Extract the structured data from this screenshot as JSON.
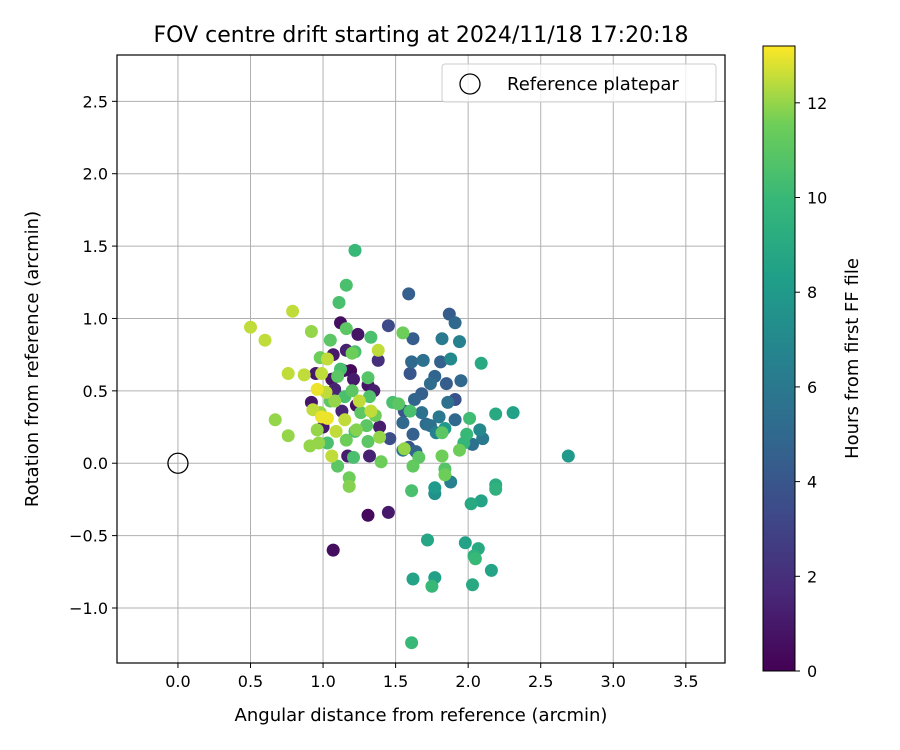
{
  "chart_data": {
    "type": "scatter",
    "title": "FOV centre drift starting at 2024/11/18 17:20:18",
    "xlabel": "Angular distance from reference (arcmin)",
    "ylabel": "Rotation from reference (arcmin)",
    "xlim": [
      -0.42,
      3.77
    ],
    "ylim": [
      -1.38,
      2.82
    ],
    "xticks": [
      0.0,
      0.5,
      1.0,
      1.5,
      2.0,
      2.5,
      3.0,
      3.5
    ],
    "yticks": [
      -1.0,
      -0.5,
      0.0,
      0.5,
      1.0,
      1.5,
      2.0,
      2.5
    ],
    "xtick_labels": [
      "0.0",
      "0.5",
      "1.0",
      "1.5",
      "2.0",
      "2.5",
      "3.0",
      "3.5"
    ],
    "ytick_labels": [
      "−1.0",
      "−0.5",
      "0.0",
      "0.5",
      "1.0",
      "1.5",
      "2.0",
      "2.5"
    ],
    "grid": true,
    "legend": {
      "placement": "top-right",
      "entries": [
        "Reference platepar"
      ]
    },
    "reference_point": {
      "x": 0.0,
      "y": 0.0
    },
    "colorbar": {
      "label": "Hours from first FF file",
      "colormap": "viridis",
      "range": [
        0,
        13.2
      ],
      "ticks": [
        0,
        2,
        4,
        6,
        8,
        10,
        12
      ],
      "tick_labels": [
        "0",
        "2",
        "4",
        "6",
        "8",
        "10",
        "12"
      ]
    },
    "points": [
      [
        1.07,
        -0.6,
        0.5
      ],
      [
        1.31,
        -0.36,
        0.4
      ],
      [
        1.45,
        -0.34,
        1.0
      ],
      [
        1.12,
        0.97,
        0.6
      ],
      [
        1.24,
        0.89,
        0.8
      ],
      [
        1.07,
        0.75,
        1.0
      ],
      [
        1.16,
        0.78,
        1.3
      ],
      [
        1.14,
        0.64,
        0.5
      ],
      [
        1.19,
        0.64,
        0.3
      ],
      [
        1.06,
        0.58,
        0.7
      ],
      [
        0.95,
        0.62,
        0.9
      ],
      [
        1.21,
        0.58,
        1.1
      ],
      [
        1.31,
        0.54,
        0.8
      ],
      [
        1.08,
        0.51,
        1.5
      ],
      [
        1.35,
        0.5,
        1.2
      ],
      [
        1.23,
        0.4,
        0.6
      ],
      [
        0.92,
        0.42,
        0.9
      ],
      [
        1.13,
        0.36,
        1.5
      ],
      [
        1.0,
        0.25,
        1.0
      ],
      [
        1.39,
        0.25,
        1.2
      ],
      [
        1.17,
        0.05,
        1.2
      ],
      [
        1.32,
        0.05,
        1.4
      ],
      [
        1.46,
        0.17,
        3.5
      ],
      [
        1.38,
        0.71,
        2.0
      ],
      [
        1.45,
        0.95,
        3.4
      ],
      [
        1.59,
        1.17,
        4.5
      ],
      [
        1.87,
        1.03,
        4.3
      ],
      [
        1.91,
        0.97,
        5.0
      ],
      [
        1.62,
        0.86,
        4.4
      ],
      [
        1.82,
        0.86,
        6.0
      ],
      [
        1.94,
        0.84,
        6.5
      ],
      [
        1.61,
        0.7,
        5.0
      ],
      [
        1.69,
        0.71,
        5.5
      ],
      [
        1.81,
        0.7,
        4.6
      ],
      [
        1.88,
        0.72,
        7.0
      ],
      [
        1.6,
        0.62,
        4.0
      ],
      [
        1.77,
        0.6,
        4.8
      ],
      [
        1.74,
        0.55,
        5.2
      ],
      [
        1.85,
        0.55,
        4.4
      ],
      [
        1.95,
        0.57,
        5.0
      ],
      [
        1.68,
        0.48,
        4.5
      ],
      [
        1.63,
        0.44,
        4.8
      ],
      [
        1.86,
        0.42,
        5.5
      ],
      [
        1.91,
        0.44,
        3.8
      ],
      [
        1.56,
        0.36,
        4.0
      ],
      [
        1.68,
        0.35,
        5.5
      ],
      [
        1.8,
        0.32,
        6.0
      ],
      [
        1.91,
        0.3,
        5.0
      ],
      [
        1.71,
        0.27,
        5.2
      ],
      [
        1.74,
        0.26,
        5.5
      ],
      [
        1.62,
        0.2,
        4.6
      ],
      [
        1.78,
        0.21,
        6.5
      ],
      [
        1.84,
        0.24,
        8.0
      ],
      [
        1.55,
        0.28,
        5.0
      ],
      [
        1.59,
        0.11,
        4.0
      ],
      [
        1.64,
        0.08,
        4.8
      ],
      [
        2.03,
        0.13,
        5.5
      ],
      [
        2.1,
        0.17,
        6.0
      ],
      [
        2.08,
        0.23,
        7.0
      ],
      [
        1.55,
        0.09,
        5.8
      ],
      [
        2.09,
        0.69,
        9.0
      ],
      [
        2.31,
        0.35,
        8.5
      ],
      [
        2.19,
        0.34,
        9.0
      ],
      [
        2.69,
        0.05,
        8.0
      ],
      [
        1.88,
        -0.13,
        6.5
      ],
      [
        1.77,
        -0.17,
        8.0
      ],
      [
        1.77,
        -0.21,
        7.5
      ],
      [
        1.98,
        -0.55,
        8.5
      ],
      [
        2.09,
        -0.26,
        8.6
      ],
      [
        2.02,
        -0.28,
        9.0
      ],
      [
        2.19,
        -0.15,
        9.2
      ],
      [
        2.19,
        -0.18,
        9.5
      ],
      [
        2.07,
        -0.59,
        9.0
      ],
      [
        2.04,
        -0.64,
        9.5
      ],
      [
        2.05,
        -0.66,
        10.0
      ],
      [
        2.16,
        -0.74,
        8.6
      ],
      [
        1.72,
        -0.53,
        8.8
      ],
      [
        1.77,
        -0.79,
        8.4
      ],
      [
        1.62,
        -0.8,
        8.6
      ],
      [
        2.03,
        -0.84,
        9.0
      ],
      [
        1.75,
        -0.85,
        10.0
      ],
      [
        1.61,
        -1.24,
        10.0
      ],
      [
        1.22,
        1.47,
        10.0
      ],
      [
        1.16,
        1.23,
        10.5
      ],
      [
        1.11,
        1.11,
        10.5
      ],
      [
        1.16,
        0.93,
        11.0
      ],
      [
        1.33,
        0.87,
        10.5
      ],
      [
        1.55,
        0.9,
        11.5
      ],
      [
        1.05,
        0.85,
        11.0
      ],
      [
        1.22,
        0.77,
        10.5
      ],
      [
        1.2,
        0.76,
        11.5
      ],
      [
        0.98,
        0.73,
        11.5
      ],
      [
        1.12,
        0.65,
        10.5
      ],
      [
        1.1,
        0.6,
        11.0
      ],
      [
        1.31,
        0.59,
        10.8
      ],
      [
        1.2,
        0.5,
        11.0
      ],
      [
        1.15,
        0.46,
        10.5
      ],
      [
        1.32,
        0.46,
        10.7
      ],
      [
        1.05,
        0.43,
        11.0
      ],
      [
        1.48,
        0.42,
        10.5
      ],
      [
        1.6,
        0.36,
        10.5
      ],
      [
        1.26,
        0.35,
        11.0
      ],
      [
        1.36,
        0.33,
        11.5
      ],
      [
        1.3,
        0.26,
        11.0
      ],
      [
        1.22,
        0.22,
        10.5
      ],
      [
        1.31,
        0.15,
        11.0
      ],
      [
        1.16,
        0.16,
        11.5
      ],
      [
        1.03,
        0.14,
        10.5
      ],
      [
        1.56,
        0.1,
        12.0
      ],
      [
        1.66,
        0.04,
        11.0
      ],
      [
        1.82,
        0.05,
        11.5
      ],
      [
        1.62,
        -0.02,
        11.2
      ],
      [
        1.4,
        0.01,
        11.5
      ],
      [
        1.21,
        0.04,
        10.5
      ],
      [
        1.1,
        -0.02,
        11.0
      ],
      [
        1.18,
        -0.1,
        11.5
      ],
      [
        1.18,
        -0.16,
        11.8
      ],
      [
        1.61,
        -0.19,
        10.5
      ],
      [
        1.84,
        -0.04,
        10.8
      ],
      [
        1.82,
        0.21,
        11.0
      ],
      [
        1.97,
        0.14,
        9.8
      ],
      [
        1.99,
        0.2,
        10.0
      ],
      [
        2.01,
        0.31,
        10.2
      ],
      [
        1.94,
        0.09,
        11.5
      ],
      [
        1.84,
        -0.08,
        11.5
      ],
      [
        1.52,
        0.41,
        11.0
      ],
      [
        0.5,
        0.94,
        12.5
      ],
      [
        0.6,
        0.85,
        12.5
      ],
      [
        0.79,
        1.05,
        12.5
      ],
      [
        0.92,
        0.91,
        12.0
      ],
      [
        1.03,
        0.72,
        12.5
      ],
      [
        0.99,
        0.62,
        12.5
      ],
      [
        0.76,
        0.62,
        12.5
      ],
      [
        0.87,
        0.61,
        12.5
      ],
      [
        0.96,
        0.51,
        13.0
      ],
      [
        1.02,
        0.49,
        12.5
      ],
      [
        1.08,
        0.43,
        12.0
      ],
      [
        1.25,
        0.43,
        12.5
      ],
      [
        0.93,
        0.37,
        12.5
      ],
      [
        0.98,
        0.35,
        12.0
      ],
      [
        0.99,
        0.32,
        13.0
      ],
      [
        1.03,
        0.31,
        13.0
      ],
      [
        1.15,
        0.3,
        12.5
      ],
      [
        0.67,
        0.3,
        12.0
      ],
      [
        0.96,
        0.23,
        12.0
      ],
      [
        1.09,
        0.22,
        12.5
      ],
      [
        0.76,
        0.19,
        12.0
      ],
      [
        0.97,
        0.14,
        12.0
      ],
      [
        0.91,
        0.12,
        12.0
      ],
      [
        1.06,
        0.05,
        12.5
      ],
      [
        1.38,
        0.78,
        12.5
      ],
      [
        1.33,
        0.36,
        12.5
      ],
      [
        1.39,
        0.18,
        12.0
      ],
      [
        1.23,
        0.23,
        11.8
      ]
    ]
  }
}
